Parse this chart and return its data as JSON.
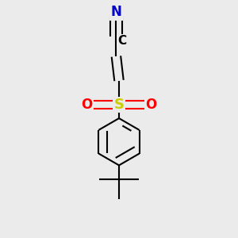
{
  "background_color": "#ebebeb",
  "bond_color": "#000000",
  "sulfur_color": "#cccc00",
  "oxygen_color": "#ff0000",
  "nitrogen_color": "#0000cc",
  "line_width": 1.5,
  "figsize": [
    3.0,
    3.0
  ],
  "dpi": 100,
  "font_size": 12,
  "S_label": "S",
  "O_label": "O",
  "N_label": "N",
  "C_label": "C",
  "xlim": [
    -0.45,
    0.45
  ],
  "ylim": [
    -0.82,
    0.82
  ]
}
